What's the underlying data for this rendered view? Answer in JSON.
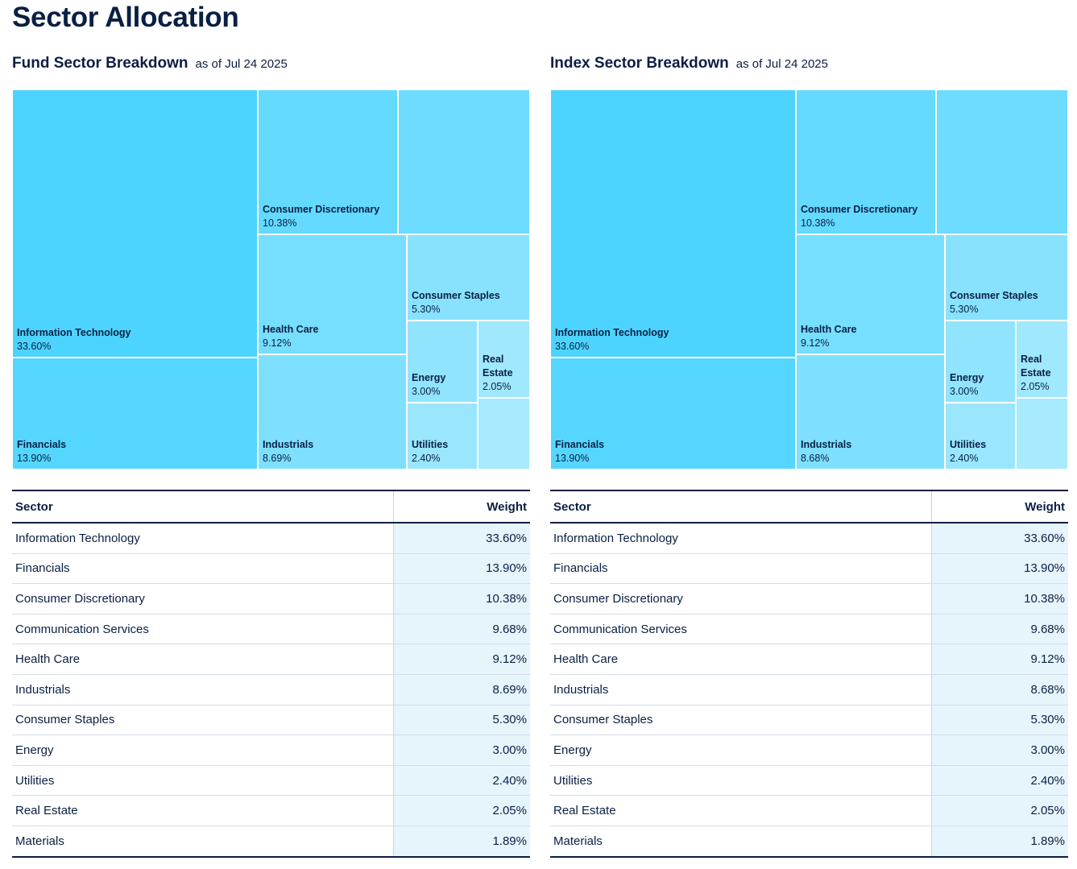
{
  "page": {
    "title": "Sector Allocation"
  },
  "table_headers": {
    "sector": "Sector",
    "weight": "Weight"
  },
  "panels": [
    {
      "title": "Fund Sector Breakdown",
      "as_of": "as of Jul 24 2025",
      "tiles": [
        {
          "name": "Information Technology",
          "value": "33.60%",
          "color": "#4dd4fe"
        },
        {
          "name": "Financials",
          "value": "13.90%",
          "color": "#55d6fe"
        },
        {
          "name": "Consumer Discretionary",
          "value": "10.38%",
          "color": "#63dafe"
        },
        {
          "name": "",
          "value": "",
          "color": "#6edcfe"
        },
        {
          "name": "Health Care",
          "value": "9.12%",
          "color": "#76defe"
        },
        {
          "name": "Industrials",
          "value": "8.69%",
          "color": "#7ee0fe"
        },
        {
          "name": "Consumer Staples",
          "value": "5.30%",
          "color": "#88e2fe"
        },
        {
          "name": "Energy",
          "value": "3.00%",
          "color": "#91e4fe"
        },
        {
          "name": "Real Estate",
          "value": "2.05%",
          "color": "#a0e8fe"
        },
        {
          "name": "Utilities",
          "value": "2.40%",
          "color": "#99e6fe"
        },
        {
          "name": "",
          "value": "",
          "color": "#a8eafe"
        }
      ],
      "rows": [
        {
          "sector": "Information Technology",
          "weight": "33.60%"
        },
        {
          "sector": "Financials",
          "weight": "13.90%"
        },
        {
          "sector": "Consumer Discretionary",
          "weight": "10.38%"
        },
        {
          "sector": "Communication Services",
          "weight": "9.68%"
        },
        {
          "sector": "Health Care",
          "weight": "9.12%"
        },
        {
          "sector": "Industrials",
          "weight": "8.69%"
        },
        {
          "sector": "Consumer Staples",
          "weight": "5.30%"
        },
        {
          "sector": "Energy",
          "weight": "3.00%"
        },
        {
          "sector": "Utilities",
          "weight": "2.40%"
        },
        {
          "sector": "Real Estate",
          "weight": "2.05%"
        },
        {
          "sector": "Materials",
          "weight": "1.89%"
        }
      ]
    },
    {
      "title": "Index Sector Breakdown",
      "as_of": "as of Jul 24 2025",
      "tiles": [
        {
          "name": "Information Technology",
          "value": "33.60%",
          "color": "#4dd4fe"
        },
        {
          "name": "Financials",
          "value": "13.90%",
          "color": "#55d6fe"
        },
        {
          "name": "Consumer Discretionary",
          "value": "10.38%",
          "color": "#63dafe"
        },
        {
          "name": "",
          "value": "",
          "color": "#6edcfe"
        },
        {
          "name": "Health Care",
          "value": "9.12%",
          "color": "#76defe"
        },
        {
          "name": "Industrials",
          "value": "8.68%",
          "color": "#7ee0fe"
        },
        {
          "name": "Consumer Staples",
          "value": "5.30%",
          "color": "#88e2fe"
        },
        {
          "name": "Energy",
          "value": "3.00%",
          "color": "#91e4fe"
        },
        {
          "name": "Real Estate",
          "value": "2.05%",
          "color": "#a0e8fe"
        },
        {
          "name": "Utilities",
          "value": "2.40%",
          "color": "#99e6fe"
        },
        {
          "name": "",
          "value": "",
          "color": "#a8eafe"
        }
      ],
      "rows": [
        {
          "sector": "Information Technology",
          "weight": "33.60%"
        },
        {
          "sector": "Financials",
          "weight": "13.90%"
        },
        {
          "sector": "Consumer Discretionary",
          "weight": "10.38%"
        },
        {
          "sector": "Communication Services",
          "weight": "9.68%"
        },
        {
          "sector": "Health Care",
          "weight": "9.12%"
        },
        {
          "sector": "Industrials",
          "weight": "8.68%"
        },
        {
          "sector": "Consumer Staples",
          "weight": "5.30%"
        },
        {
          "sector": "Energy",
          "weight": "3.00%"
        },
        {
          "sector": "Utilities",
          "weight": "2.40%"
        },
        {
          "sector": "Real Estate",
          "weight": "2.05%"
        },
        {
          "sector": "Materials",
          "weight": "1.89%"
        }
      ]
    }
  ],
  "chart_data": [
    {
      "type": "treemap",
      "title": "Fund Sector Breakdown",
      "subtitle": "as of Jul 24 2025",
      "categories": [
        "Information Technology",
        "Financials",
        "Consumer Discretionary",
        "Communication Services",
        "Health Care",
        "Industrials",
        "Consumer Staples",
        "Energy",
        "Utilities",
        "Real Estate",
        "Materials"
      ],
      "values": [
        33.6,
        13.9,
        10.38,
        9.68,
        9.12,
        8.69,
        5.3,
        3.0,
        2.4,
        2.05,
        1.89
      ]
    },
    {
      "type": "treemap",
      "title": "Index Sector Breakdown",
      "subtitle": "as of Jul 24 2025",
      "categories": [
        "Information Technology",
        "Financials",
        "Consumer Discretionary",
        "Communication Services",
        "Health Care",
        "Industrials",
        "Consumer Staples",
        "Energy",
        "Utilities",
        "Real Estate",
        "Materials"
      ],
      "values": [
        33.6,
        13.9,
        10.38,
        9.68,
        9.12,
        8.68,
        5.3,
        3.0,
        2.4,
        2.05,
        1.89
      ]
    }
  ]
}
